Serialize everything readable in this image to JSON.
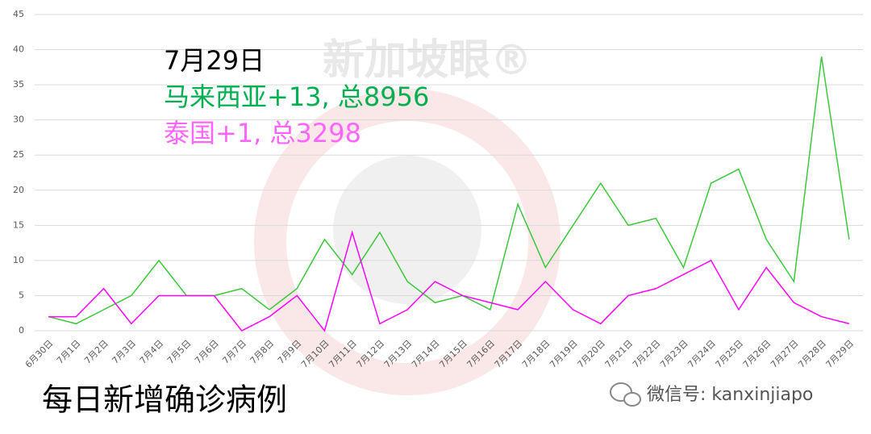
{
  "chart_data": {
    "type": "line",
    "categories": [
      "6月30日",
      "7月1日",
      "7月2日",
      "7月3日",
      "7月4日",
      "7月5日",
      "7月6日",
      "7月7日",
      "7月8日",
      "7月9日",
      "7月10日",
      "7月11日",
      "7月12日",
      "7月13日",
      "7月14日",
      "7月15日",
      "7月16日",
      "7月17日",
      "7月18日",
      "7月19日",
      "7月20日",
      "7月21日",
      "7月22日",
      "7月23日",
      "7月24日",
      "7月25日",
      "7月26日",
      "7月27日",
      "7月28日",
      "7月29日"
    ],
    "series": [
      {
        "color": "#3cc83c",
        "values": [
          2,
          1,
          3,
          5,
          10,
          5,
          5,
          6,
          3,
          6,
          13,
          8,
          14,
          7,
          4,
          5,
          3,
          18,
          9,
          15,
          21,
          15,
          16,
          9,
          21,
          23,
          13,
          7,
          39,
          13
        ]
      },
      {
        "color": "#ff00ff",
        "values": [
          2,
          2,
          6,
          1,
          5,
          5,
          5,
          0,
          2,
          5,
          0,
          14,
          1,
          3,
          7,
          5,
          4,
          3,
          7,
          3,
          1,
          5,
          6,
          8,
          10,
          3,
          9,
          4,
          2,
          1
        ]
      }
    ],
    "ylim": [
      0,
      45
    ],
    "yticks": [
      0,
      5,
      10,
      15,
      20,
      25,
      30,
      35,
      40,
      45
    ],
    "grid": true,
    "annotations": [
      {
        "text": "7月29日",
        "color": "#000000"
      },
      {
        "text": "马来西亚+13, 总8956",
        "color": "#00b050"
      },
      {
        "text": "泰国+1, 总3298",
        "color": "#ff66ff"
      }
    ],
    "caption": "每日新增确诊病例",
    "watermark": "新加坡眼®",
    "wechat_id": "微信号: kanxinjiapo"
  }
}
